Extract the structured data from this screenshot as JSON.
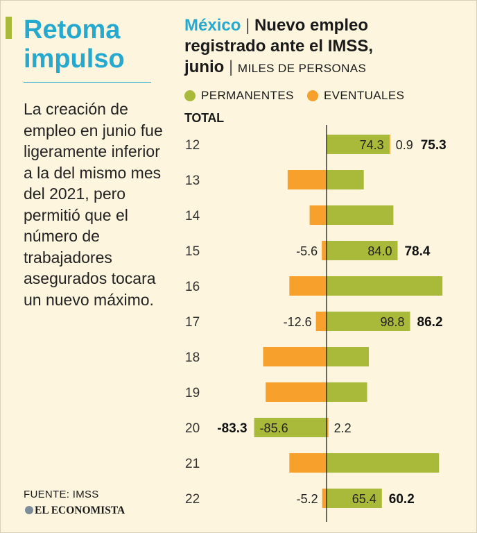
{
  "colors": {
    "permanent": "#a9b93a",
    "eventual": "#f7a02c",
    "accent": "#26a9cf"
  },
  "left_panel": {
    "headline": [
      "Retoma",
      "impulso"
    ],
    "body": "La creación de empleo en junio fue ligeramente inferior a la del mismo mes del 2021, pero permitió que el número de trabajadores asegurados tocara un nuevo máximo.",
    "source": "FUENTE: IMSS",
    "logo": "EL ECONOMISTA"
  },
  "chart_header": {
    "country": "México",
    "separator": "|",
    "title_line1": "Nuevo empleo",
    "title_line2": "registrado ante el IMSS,",
    "title_line3": "junio",
    "unit": "MILES DE PERSONAS"
  },
  "chart_data": {
    "type": "bar",
    "orientation": "horizontal",
    "stacked": "diverging",
    "categories": [
      "12",
      "13",
      "14",
      "15",
      "16",
      "17",
      "18",
      "19",
      "20",
      "21",
      "22"
    ],
    "series": [
      {
        "name": "PERMANENTES",
        "values": [
          74.3,
          44,
          79,
          84.0,
          137,
          98.8,
          50,
          48,
          -85.6,
          133,
          65.4
        ],
        "labels": [
          "74.3",
          "",
          "",
          "84.0",
          "",
          "98.8",
          "",
          "",
          "-85.6",
          "",
          "65.4"
        ]
      },
      {
        "name": "EVENTUALES",
        "values": [
          0.9,
          -46,
          -20,
          -5.6,
          -44,
          -12.6,
          -75,
          -72,
          2.2,
          -44,
          -5.2
        ],
        "labels": [
          "0.9",
          "",
          "",
          "-5.6",
          "",
          "-12.6",
          "",
          "",
          "2.2",
          "",
          "-5.2"
        ]
      }
    ],
    "total_label": "TOTAL",
    "totals": [
      "75.3",
      "",
      "",
      "78.4",
      "",
      "86.2",
      "",
      "",
      "-83.3",
      "",
      "60.2"
    ],
    "xlim": [
      -135,
      140
    ],
    "grid": false,
    "legend_position": "top"
  }
}
